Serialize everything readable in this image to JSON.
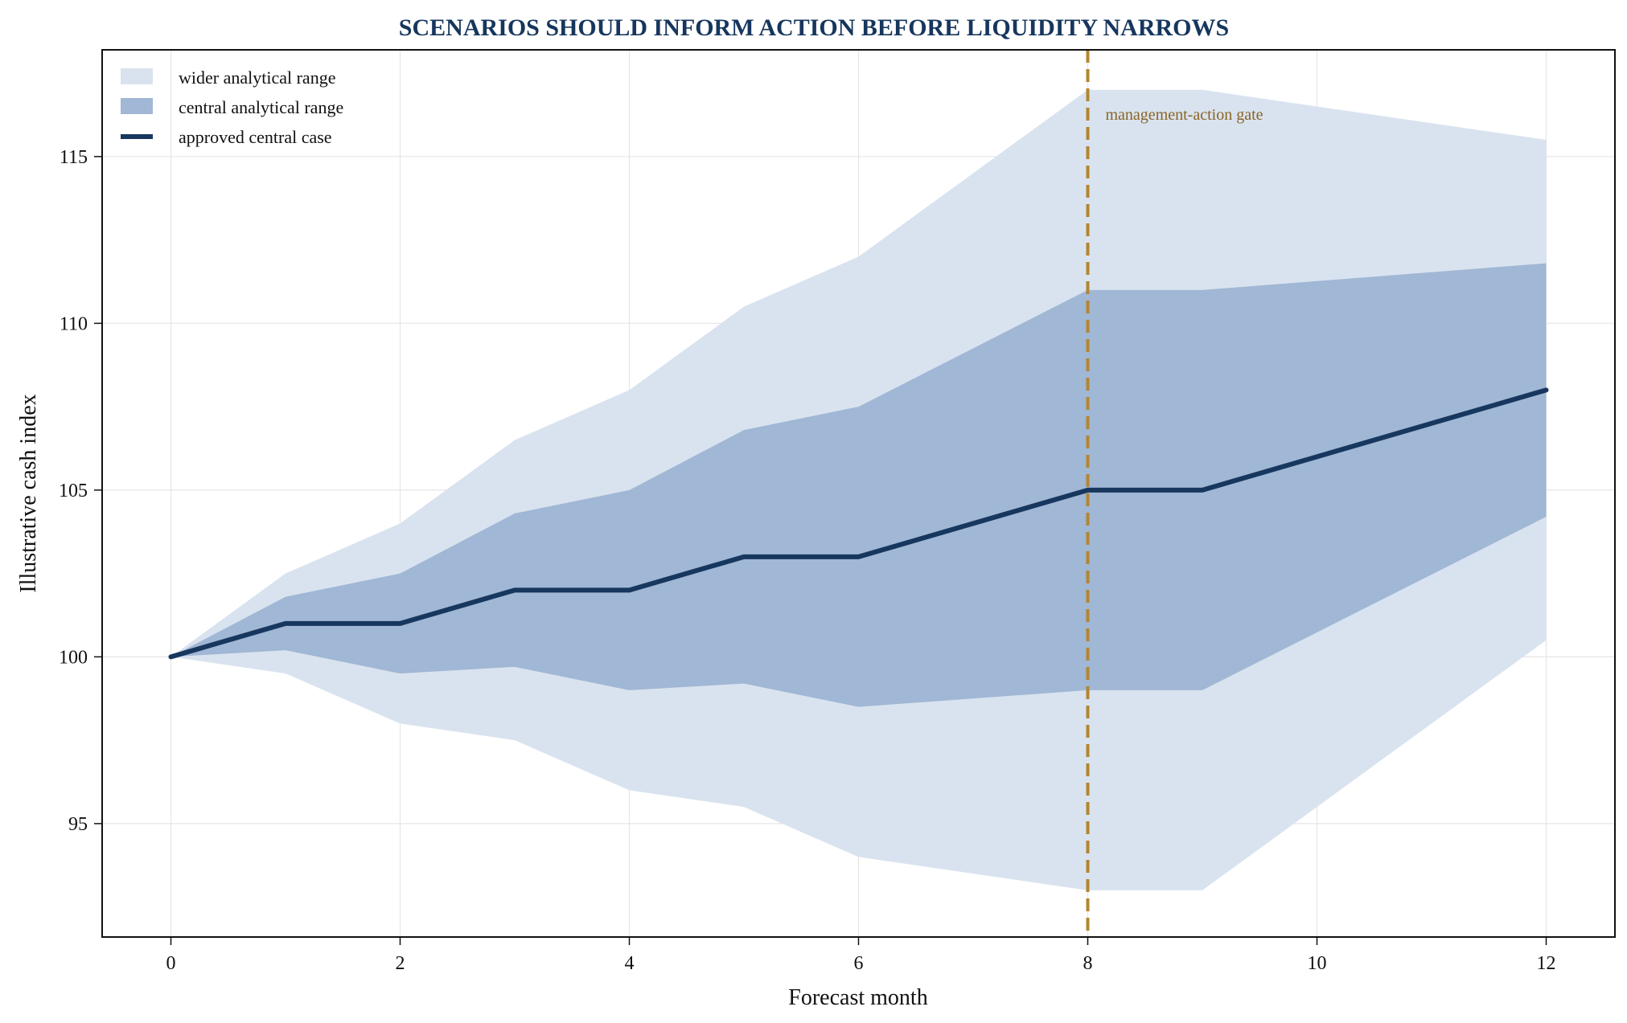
{
  "chart_data": {
    "type": "area",
    "title": "SCENARIOS SHOULD INFORM ACTION BEFORE LIQUIDITY NARROWS",
    "xlabel": "Forecast month",
    "ylabel": "Illustrative cash index",
    "x": [
      0,
      1,
      2,
      3,
      4,
      5,
      6,
      8,
      9,
      12
    ],
    "xlim": [
      -0.6,
      12.6
    ],
    "ylim": [
      91.6,
      118.2
    ],
    "xticks": [
      0,
      2,
      4,
      6,
      8,
      10,
      12
    ],
    "yticks": [
      95,
      100,
      105,
      110,
      115
    ],
    "xtick_labels": [
      "0",
      "2",
      "4",
      "6",
      "8",
      "10",
      "12"
    ],
    "ytick_labels": [
      "95",
      "100",
      "105",
      "110",
      "115"
    ],
    "grid": true,
    "legend_position": "top-left",
    "series": [
      {
        "name": "wider analytical range",
        "kind": "band",
        "color": "#d9e3ef",
        "upper": [
          100,
          102.5,
          104.0,
          106.5,
          108.0,
          110.5,
          112.0,
          117.0,
          117.0,
          115.5
        ],
        "lower": [
          100,
          99.5,
          98.0,
          97.5,
          96.0,
          95.5,
          94.0,
          93.0,
          93.0,
          100.5
        ]
      },
      {
        "name": "central analytical range",
        "kind": "band",
        "color": "#a0b7d5",
        "upper": [
          100,
          101.8,
          102.5,
          104.3,
          105.0,
          106.8,
          107.5,
          111.0,
          111.0,
          111.8
        ],
        "lower": [
          100,
          100.2,
          99.5,
          99.7,
          99.0,
          99.2,
          98.5,
          99.0,
          99.0,
          104.2
        ]
      },
      {
        "name": "approved central case",
        "kind": "line",
        "color": "#17375e",
        "values": [
          100,
          101,
          101,
          102,
          102,
          103,
          103,
          105,
          105,
          108
        ]
      }
    ],
    "annotations": [
      {
        "type": "vline",
        "x": 8,
        "label": "management-action gate",
        "color": "#b38530",
        "label_color": "#8a6426"
      }
    ]
  }
}
